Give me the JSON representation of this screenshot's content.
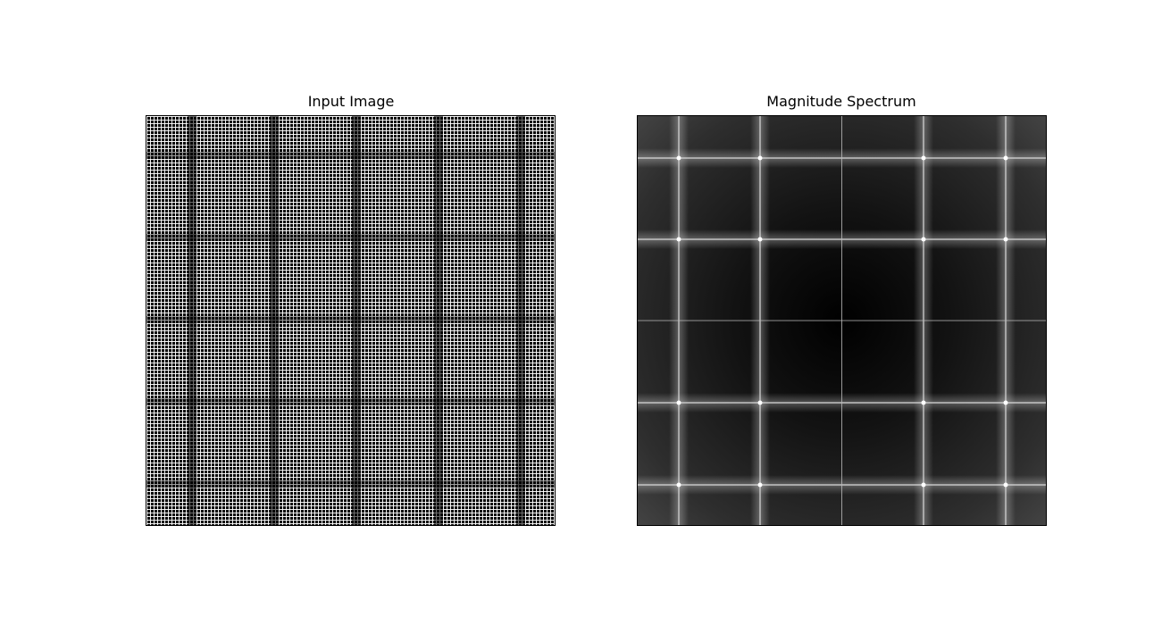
{
  "panels": {
    "left": {
      "title": "Input Image"
    },
    "right": {
      "title": "Magnitude Spectrum"
    }
  },
  "colors": {
    "background": "#ffffff",
    "image_black": "#000000",
    "image_white": "#ffffff",
    "spectrum_dark": "#000000",
    "spectrum_mid": "#4a4a4a",
    "spectrum_line": "#e0e0e0"
  }
}
